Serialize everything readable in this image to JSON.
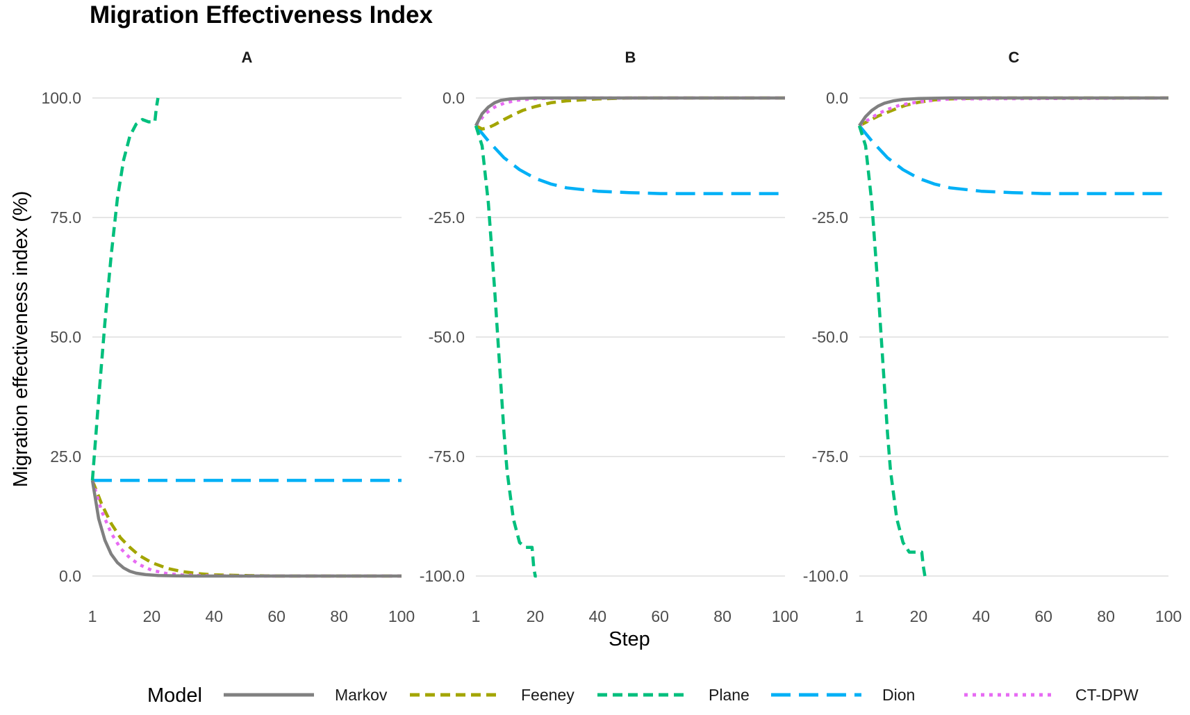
{
  "title": "Migration Effectiveness Index",
  "chart_data": {
    "type": "line",
    "title": "Migration Effectiveness Index",
    "xlabel": "Step",
    "ylabel": "Migration effectiveness index (%)",
    "legend_title": "Model",
    "legend_position": "bottom",
    "grid": "horizontal major",
    "x_ticks": [
      1,
      20,
      40,
      60,
      80,
      100
    ],
    "series_styles": [
      {
        "name": "Markov",
        "color": "#808080",
        "dash": "solid"
      },
      {
        "name": "Feeney",
        "color": "#a3a500",
        "dash": "dashed"
      },
      {
        "name": "Plane",
        "color": "#00bf7d",
        "dash": "dashed"
      },
      {
        "name": "Dion",
        "color": "#00b0f6",
        "dash": "longdash"
      },
      {
        "name": "CT-DPW",
        "color": "#e76bf3",
        "dash": "dotted"
      }
    ],
    "panels": [
      {
        "label": "A",
        "xlim": [
          1,
          100
        ],
        "ylim": [
          0,
          100
        ],
        "y_ticks": [
          "0.0",
          "25.0",
          "50.0",
          "75.0",
          "100.0"
        ],
        "series": [
          {
            "name": "Markov",
            "x": [
              1,
              3,
              5,
              7,
              9,
              11,
              13,
              15,
              18,
              22,
              28,
              35,
              50,
              100
            ],
            "y": [
              20,
              12,
              7.5,
              4.6,
              2.8,
              1.7,
              1.0,
              0.6,
              0.3,
              0.1,
              0.03,
              0,
              0,
              0
            ]
          },
          {
            "name": "Feeney",
            "x": [
              1,
              4,
              7,
              10,
              13,
              16,
              20,
              25,
              30,
              35,
              40,
              50,
              60,
              100
            ],
            "y": [
              20,
              15,
              11,
              8,
              6,
              4.3,
              2.8,
              1.6,
              0.9,
              0.5,
              0.25,
              0.1,
              0,
              0
            ]
          },
          {
            "name": "Plane",
            "x": [
              1,
              3,
              5,
              7,
              9,
              11,
              13,
              15,
              17,
              19,
              20,
              21,
              21.5,
              22
            ],
            "y": [
              20,
              37,
              53,
              67,
              79,
              87,
              92,
              94.5,
              95.5,
              95,
              95,
              95,
              98,
              100
            ]
          },
          {
            "name": "Dion",
            "x": [
              1,
              100
            ],
            "y": [
              20,
              20
            ]
          },
          {
            "name": "CT-DPW",
            "x": [
              1,
              4,
              7,
              10,
              13,
              16,
              20,
              25,
              30,
              40,
              50,
              100
            ],
            "y": [
              20,
              13.5,
              9,
              5.8,
              3.8,
              2.4,
              1.2,
              0.5,
              0.2,
              0.05,
              0,
              0
            ]
          }
        ]
      },
      {
        "label": "B",
        "xlim": [
          1,
          100
        ],
        "ylim": [
          -100,
          0
        ],
        "y_ticks": [
          "-100.0",
          "-75.0",
          "-50.0",
          "-25.0",
          "0.0"
        ],
        "series": [
          {
            "name": "Markov",
            "x": [
              1,
              3,
              5,
              7,
              9,
              12,
              15,
              20,
              30,
              100
            ],
            "y": [
              -5.8,
              -3.3,
              -1.9,
              -1.0,
              -0.5,
              -0.2,
              -0.08,
              0,
              0,
              0
            ]
          },
          {
            "name": "Feeney",
            "x": [
              1,
              3,
              5,
              7,
              10,
              13,
              16,
              20,
              25,
              30,
              40,
              50,
              100
            ],
            "y": [
              -5.8,
              -6.5,
              -6.2,
              -5.6,
              -4.5,
              -3.5,
              -2.6,
              -1.8,
              -1.0,
              -0.6,
              -0.2,
              0,
              0
            ]
          },
          {
            "name": "Plane",
            "x": [
              1,
              3,
              5,
              7,
              9,
              10,
              11,
              13,
              15,
              17,
              18,
              19,
              19.5,
              20,
              20.5
            ],
            "y": [
              -5.8,
              -10,
              -22,
              -40,
              -60,
              -70,
              -78,
              -88,
              -93,
              -94,
              -94,
              -94,
              -98,
              -100,
              -100
            ]
          },
          {
            "name": "Dion",
            "x": [
              1,
              5,
              10,
              15,
              20,
              25,
              30,
              40,
              50,
              60,
              100
            ],
            "y": [
              -5.8,
              -9,
              -12.5,
              -15,
              -16.8,
              -18,
              -18.8,
              -19.5,
              -19.8,
              -20,
              -20
            ]
          },
          {
            "name": "CT-DPW",
            "x": [
              1,
              4,
              7,
              10,
              14,
              20,
              30,
              100
            ],
            "y": [
              -5.8,
              -3.3,
              -1.9,
              -1.1,
              -0.5,
              -0.15,
              0,
              0
            ]
          }
        ]
      },
      {
        "label": "C",
        "xlim": [
          1,
          100
        ],
        "ylim": [
          -100,
          0
        ],
        "y_ticks": [
          "-100.0",
          "-75.0",
          "-50.0",
          "-25.0",
          "0.0"
        ],
        "series": [
          {
            "name": "Markov",
            "x": [
              1,
              3,
              5,
              7,
              9,
              12,
              15,
              20,
              30,
              100
            ],
            "y": [
              -5.8,
              -3.9,
              -2.6,
              -1.7,
              -1.1,
              -0.6,
              -0.3,
              -0.1,
              0,
              0
            ]
          },
          {
            "name": "Feeney",
            "x": [
              1,
              4,
              7,
              10,
              13,
              16,
              20,
              25,
              30,
              40,
              100
            ],
            "y": [
              -5.8,
              -4.8,
              -3.8,
              -3.0,
              -2.2,
              -1.5,
              -0.9,
              -0.4,
              -0.2,
              0,
              0
            ]
          },
          {
            "name": "Plane",
            "x": [
              1,
              3,
              5,
              7,
              9,
              10,
              11,
              13,
              15,
              17,
              19,
              20,
              21,
              21.5,
              22
            ],
            "y": [
              -5.8,
              -10,
              -22,
              -40,
              -60,
              -70,
              -78,
              -88,
              -93,
              -95,
              -95,
              -95,
              -95,
              -98,
              -100
            ]
          },
          {
            "name": "Dion",
            "x": [
              1,
              5,
              10,
              15,
              20,
              25,
              30,
              40,
              50,
              60,
              100
            ],
            "y": [
              -5.8,
              -9,
              -12.5,
              -15,
              -16.8,
              -18,
              -18.8,
              -19.5,
              -19.8,
              -20,
              -20
            ]
          },
          {
            "name": "CT-DPW",
            "x": [
              1,
              4,
              7,
              10,
              14,
              20,
              30,
              100
            ],
            "y": [
              -5.8,
              -4.5,
              -3.3,
              -2.4,
              -1.5,
              -0.8,
              -0.2,
              0
            ]
          }
        ]
      }
    ]
  }
}
